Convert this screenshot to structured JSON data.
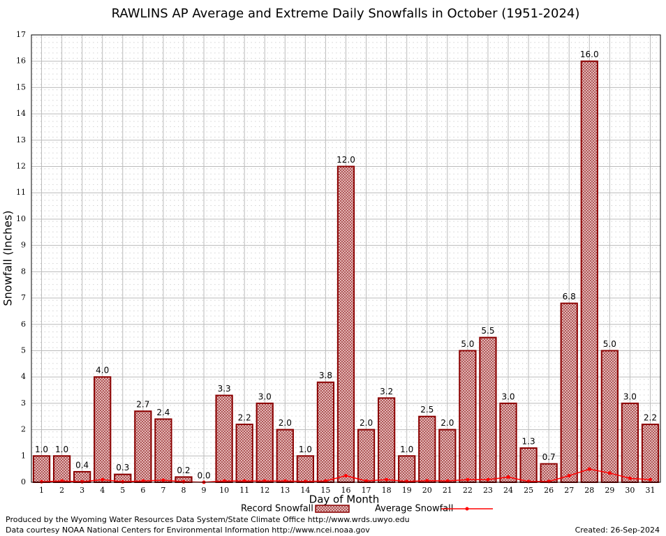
{
  "chart_data": {
    "type": "bar",
    "title": "RAWLINS AP Average and Extreme Daily Snowfalls in October (1951-2024)",
    "y_label": "Snowfall (Inches)",
    "x_label": "Day of Month",
    "categories": [
      "1",
      "2",
      "3",
      "4",
      "5",
      "6",
      "7",
      "8",
      "9",
      "10",
      "11",
      "12",
      "13",
      "14",
      "15",
      "16",
      "17",
      "18",
      "19",
      "20",
      "21",
      "22",
      "23",
      "24",
      "25",
      "26",
      "27",
      "28",
      "29",
      "30",
      "31"
    ],
    "series": [
      {
        "name": "Record Snowfall",
        "type": "bar",
        "color": "#8b0000",
        "values": [
          1.0,
          1.0,
          0.4,
          4.0,
          0.3,
          2.7,
          2.4,
          0.2,
          0.0,
          3.3,
          2.2,
          3.0,
          2.0,
          1.0,
          3.8,
          12.0,
          2.0,
          3.2,
          1.0,
          2.5,
          2.0,
          5.0,
          5.5,
          3.0,
          1.3,
          0.7,
          6.8,
          16.0,
          5.0,
          3.0,
          2.2
        ],
        "value_labels": [
          "1.0",
          "1.0",
          "0.4",
          "4.0",
          "0.3",
          "2.7",
          "2.4",
          "0.2",
          "0.0",
          "3.3",
          "2.2",
          "3.0",
          "2.0",
          "1.0",
          "3.8",
          "12.0",
          "2.0",
          "3.2",
          "1.0",
          "2.5",
          "2.0",
          "5.0",
          "5.5",
          "3.0",
          "1.3",
          "0.7",
          "6.8",
          "16.0",
          "5.0",
          "3.0",
          "2.2"
        ]
      },
      {
        "name": "Average Snowfall",
        "type": "line",
        "color": "#ff0000",
        "values": [
          0.02,
          0.05,
          0.02,
          0.1,
          0.02,
          0.05,
          0.08,
          0.02,
          0.0,
          0.05,
          0.05,
          0.05,
          0.05,
          0.03,
          0.05,
          0.25,
          0.05,
          0.1,
          0.03,
          0.06,
          0.05,
          0.1,
          0.1,
          0.2,
          0.03,
          0.03,
          0.25,
          0.5,
          0.35,
          0.15,
          0.1
        ]
      }
    ],
    "ylim": [
      0,
      17
    ],
    "yticks": [
      0,
      1,
      2,
      3,
      4,
      5,
      6,
      7,
      8,
      9,
      10,
      11,
      12,
      13,
      14,
      15,
      16,
      17
    ],
    "grid": true,
    "legend": "bottom",
    "footer": [
      "Produced by the Wyoming Water Resources Data System/State Climate Office http://www.wrds.uwyo.edu",
      "Data courtesy NOAA National Centers for Environmental Information http://www.ncei.noaa.gov"
    ],
    "created": "Created:  26-Sep-2024"
  }
}
